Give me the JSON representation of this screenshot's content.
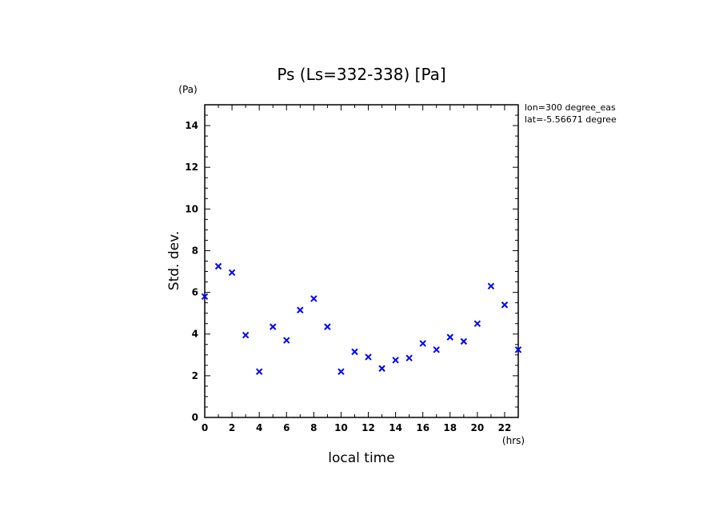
{
  "chart_data": {
    "type": "scatter",
    "title": "Ps (Ls=332-338) [Pa]",
    "xlabel": "local time",
    "ylabel": "Std. dev.",
    "x_unit": "(hrs)",
    "y_unit": "(Pa)",
    "xlim": [
      0,
      23
    ],
    "ylim": [
      0,
      15
    ],
    "x_ticks": [
      0,
      2,
      4,
      6,
      8,
      10,
      12,
      14,
      16,
      18,
      20,
      22
    ],
    "y_ticks": [
      0,
      2,
      4,
      6,
      8,
      10,
      12,
      14
    ],
    "annotations": [
      "lon=300 degree_eas",
      "lat=-5.56671 degree"
    ],
    "marker": "x",
    "marker_color": "#0000ff",
    "grid": false,
    "x": [
      0,
      1,
      2,
      3,
      4,
      5,
      6,
      7,
      8,
      9,
      10,
      11,
      12,
      13,
      14,
      15,
      16,
      17,
      18,
      19,
      20,
      21,
      22,
      23
    ],
    "y": [
      5.8,
      7.25,
      6.95,
      3.95,
      2.2,
      4.35,
      3.7,
      5.15,
      5.7,
      4.35,
      2.2,
      3.15,
      2.9,
      2.35,
      2.75,
      2.85,
      3.55,
      3.25,
      3.85,
      3.65,
      4.5,
      6.3,
      5.4,
      3.25
    ]
  }
}
